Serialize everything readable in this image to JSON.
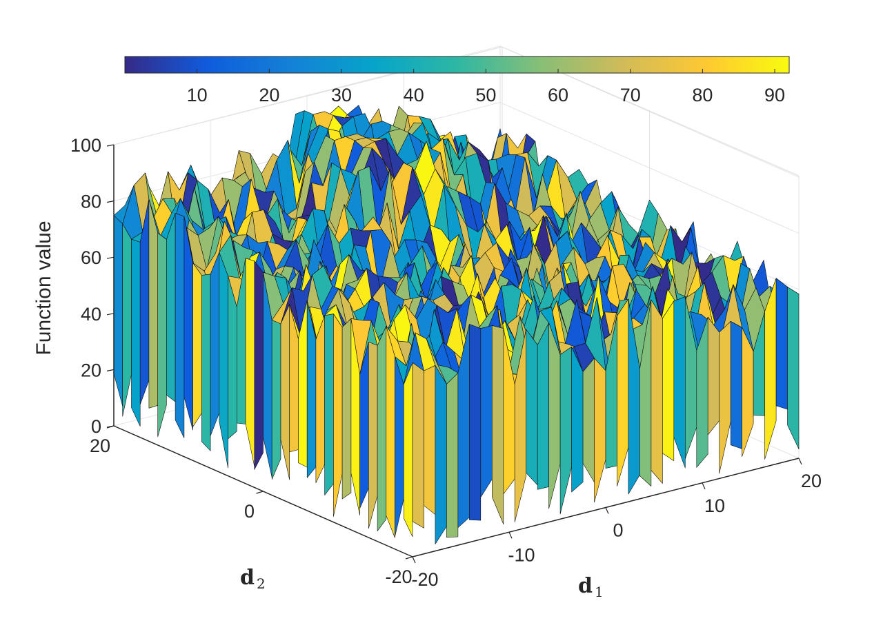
{
  "chart_data": {
    "type": "surface",
    "view": "3d",
    "zlabel": "Function value",
    "xlabel": "d",
    "xlabel_sub": "1",
    "ylabel": "d",
    "ylabel_sub": "2",
    "x_range": [
      -20,
      20
    ],
    "y_range": [
      -20,
      20
    ],
    "zlim": [
      0,
      100
    ],
    "x_ticks": [
      "-20",
      "-10",
      "0",
      "10",
      "20"
    ],
    "y_ticks": [
      "-20",
      "0",
      "20"
    ],
    "z_ticks": [
      "0",
      "20",
      "40",
      "60",
      "80",
      "100"
    ],
    "colorbar": {
      "location": "top",
      "range": [
        0,
        92
      ],
      "ticks": [
        "10",
        "20",
        "30",
        "40",
        "50",
        "60",
        "70",
        "80",
        "90"
      ],
      "colormap": "parula",
      "colors": [
        "#352a87",
        "#0f5cdd",
        "#1481d6",
        "#06a4ca",
        "#2eb7a4",
        "#87bf77",
        "#d1bb59",
        "#fec832",
        "#f9fb0e"
      ]
    },
    "grid": true,
    "surface_description": "Highly noisy surface; values mostly between ~45 and ~95 with a broad peak near d1≈0, d2≈10 and lower values toward the front edges.",
    "surface_samples": [
      {
        "d1": -20,
        "d2": 20,
        "z": 78
      },
      {
        "d1": -10,
        "d2": 10,
        "z": 70
      },
      {
        "d1": 0,
        "d2": 10,
        "z": 92
      },
      {
        "d1": 0,
        "d2": 0,
        "z": 60
      },
      {
        "d1": 10,
        "d2": 0,
        "z": 55
      },
      {
        "d1": 20,
        "d2": -20,
        "z": 55
      },
      {
        "d1": -20,
        "d2": -20,
        "z": 65
      },
      {
        "d1": 20,
        "d2": 20,
        "z": 62
      }
    ]
  }
}
